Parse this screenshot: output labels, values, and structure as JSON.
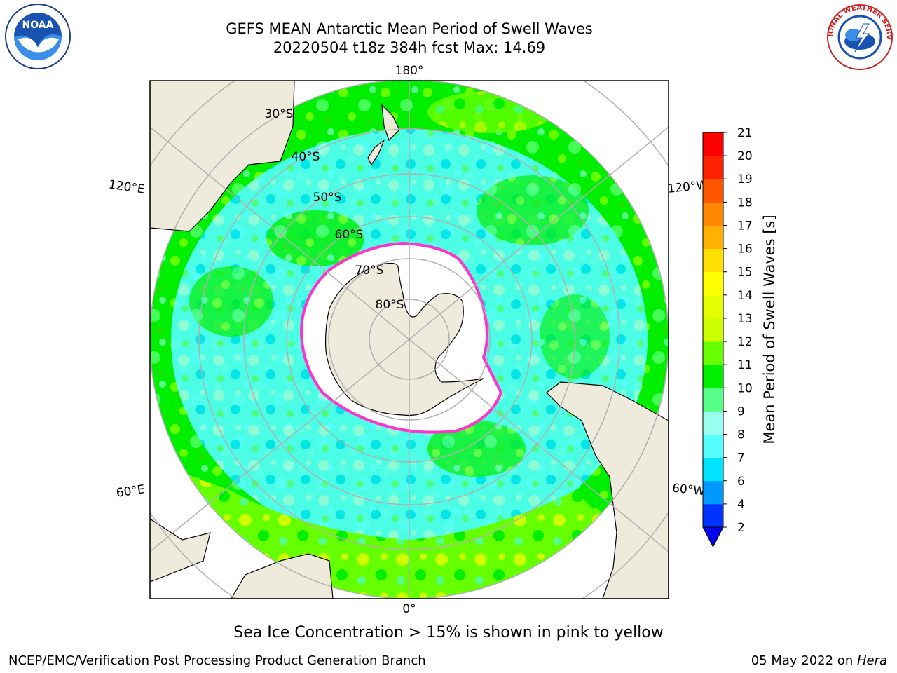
{
  "header": {
    "title_line1": "GEFS MEAN Antarctic Mean Period of Swell Waves",
    "title_line2": "20220504 t18z 384h fcst   Max: 14.69"
  },
  "logos": {
    "left": {
      "name": "noaa-logo",
      "text": "NOAA"
    },
    "right": {
      "name": "nws-logo",
      "text": "NATIONAL WEATHER SERVICE"
    }
  },
  "map": {
    "projection": "south-polar-stereographic",
    "lon_labels": {
      "top": "180°",
      "bottom": "0°",
      "upper_left": "120°E",
      "lower_left": "60°E",
      "upper_right": "120°W",
      "lower_right": "60°W"
    },
    "lat_labels": [
      "30°S",
      "40°S",
      "50°S",
      "60°S",
      "70°S",
      "80°S"
    ],
    "colors": {
      "land": "#efebdc",
      "ice_edge": "#ff33cc",
      "grid": "#b0b0b0"
    }
  },
  "colorbar": {
    "label": "Mean Period of Swell Waves [s]",
    "ticks": [
      "2",
      "4",
      "6",
      "7",
      "8",
      "9",
      "10",
      "11",
      "12",
      "13",
      "14",
      "15",
      "16",
      "17",
      "18",
      "19",
      "20",
      "21"
    ],
    "colors": [
      "#0033ff",
      "#0099ff",
      "#00e5ff",
      "#55ffff",
      "#99ffee",
      "#55ff88",
      "#00ee00",
      "#66ff00",
      "#ccff00",
      "#e5ff00",
      "#ffff00",
      "#ffe000",
      "#ffb000",
      "#ff8800",
      "#ff5500",
      "#ff2200",
      "#ff0000"
    ],
    "extend": "min"
  },
  "caption": "Sea Ice Concentration > 15% is shown in pink to yellow",
  "footer": {
    "left": "NCEP/EMC/Verification Post Processing Product Generation Branch",
    "right_date": "05 May 2022 on ",
    "right_machine": "Hera"
  }
}
